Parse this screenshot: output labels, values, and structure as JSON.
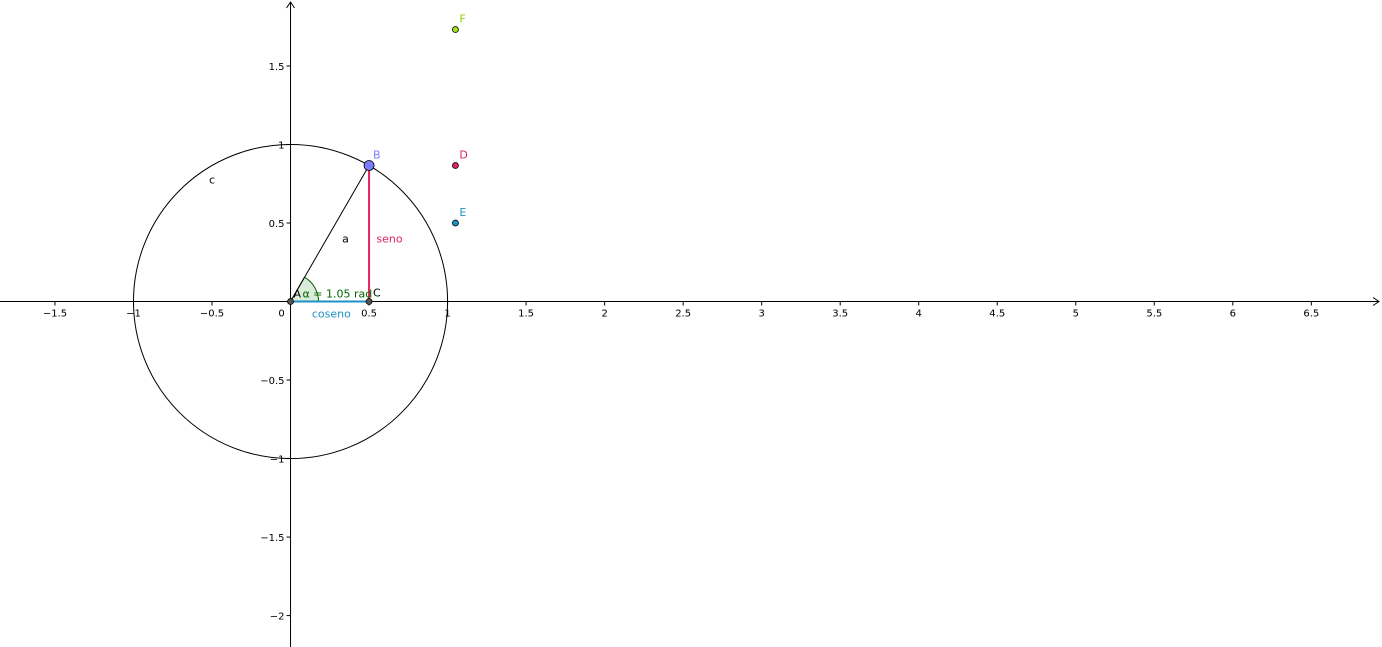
{
  "colors": {
    "background": "#ffffff",
    "axis": "#000000",
    "circle": "#000000",
    "segment_a": "#000000",
    "seno": "#e0245e",
    "coseno": "#1e90c8",
    "angle_fill": "#cfe6cf",
    "angle_stroke": "#006400",
    "angle_text": "#006400",
    "point_A": "#555555",
    "point_B": "#7b7bff",
    "point_C": "#555555",
    "point_D": "#e0245e",
    "point_E": "#1e90c8",
    "point_F": "#a0e020",
    "label_B": "#7b7bff",
    "label_D": "#e0245e",
    "label_E": "#1e90c8",
    "label_F": "#90d000"
  },
  "chart_data": {
    "type": "geometry",
    "xlim": [
      -1.85,
      6.95
    ],
    "ylim": [
      -2.2,
      1.92
    ],
    "grid": false,
    "x_ticks": [
      {
        "value": -1.5,
        "label": "−1.5"
      },
      {
        "value": -1,
        "label": "−1"
      },
      {
        "value": -0.5,
        "label": "−0.5"
      },
      {
        "value": 0,
        "label": "0"
      },
      {
        "value": 0.5,
        "label": "0.5"
      },
      {
        "value": 1,
        "label": "1"
      },
      {
        "value": 1.5,
        "label": "1.5"
      },
      {
        "value": 2,
        "label": "2"
      },
      {
        "value": 2.5,
        "label": "2.5"
      },
      {
        "value": 3,
        "label": "3"
      },
      {
        "value": 3.5,
        "label": "3.5"
      },
      {
        "value": 4,
        "label": "4"
      },
      {
        "value": 4.5,
        "label": "4.5"
      },
      {
        "value": 5,
        "label": "5"
      },
      {
        "value": 5.5,
        "label": "5.5"
      },
      {
        "value": 6,
        "label": "6"
      },
      {
        "value": 6.5,
        "label": "6.5"
      }
    ],
    "y_ticks": [
      {
        "value": 1.5,
        "label": "1.5"
      },
      {
        "value": 1,
        "label": "1"
      },
      {
        "value": 0.5,
        "label": "0.5"
      },
      {
        "value": -0.5,
        "label": "−0.5"
      },
      {
        "value": -1,
        "label": "−1"
      },
      {
        "value": -1.5,
        "label": "−1.5"
      },
      {
        "value": -2,
        "label": "−2"
      }
    ],
    "circle": {
      "name": "c",
      "center": [
        0,
        0
      ],
      "radius": 1,
      "label_at": [
        -0.5,
        0.75
      ]
    },
    "angle": {
      "label": "α = 1.05 rad",
      "radians": 1.05
    },
    "points": [
      {
        "name": "A",
        "x": 0,
        "y": 0,
        "color_key": "point_A",
        "label_color_key": "axis",
        "big": false
      },
      {
        "name": "B",
        "x": 0.5,
        "y": 0.866,
        "color_key": "point_B",
        "label_color_key": "label_B",
        "big": true
      },
      {
        "name": "C",
        "x": 0.5,
        "y": 0,
        "color_key": "point_C",
        "label_color_key": "axis",
        "big": false
      },
      {
        "name": "D",
        "x": 1.05,
        "y": 0.866,
        "color_key": "point_D",
        "label_color_key": "label_D",
        "big": false
      },
      {
        "name": "E",
        "x": 1.05,
        "y": 0.5,
        "color_key": "point_E",
        "label_color_key": "label_E",
        "big": false
      },
      {
        "name": "F",
        "x": 1.05,
        "y": 1.732,
        "color_key": "point_F",
        "label_color_key": "label_F",
        "big": false
      }
    ],
    "segments": [
      {
        "name": "a",
        "from": "A",
        "to": "B",
        "color_key": "segment_a",
        "label": "a",
        "label_at": [
          0.35,
          0.4
        ]
      },
      {
        "name": "seno",
        "from": "C",
        "to": "B",
        "color_key": "seno",
        "label": "seno",
        "label_at": [
          0.63,
          0.4
        ]
      },
      {
        "name": "coseno",
        "from": "A",
        "to": "C",
        "color_key": "coseno",
        "label": "coseno",
        "label_at": [
          0.26,
          -0.075
        ]
      }
    ]
  }
}
